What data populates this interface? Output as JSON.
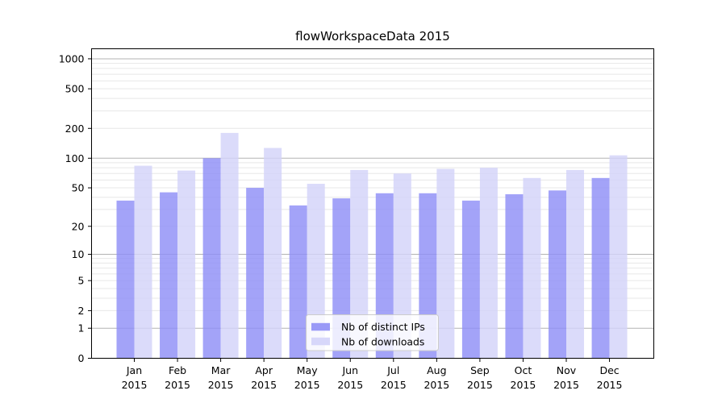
{
  "title": "flowWorkspaceData 2015",
  "chart_data": {
    "type": "bar",
    "title": "flowWorkspaceData 2015",
    "categories": [
      "Jan 2015",
      "Feb 2015",
      "Mar 2015",
      "Apr 2015",
      "May 2015",
      "Jun 2015",
      "Jul 2015",
      "Aug 2015",
      "Sep 2015",
      "Oct 2015",
      "Nov 2015",
      "Dec 2015"
    ],
    "x_tick_labels": [
      [
        "Jan",
        "2015"
      ],
      [
        "Feb",
        "2015"
      ],
      [
        "Mar",
        "2015"
      ],
      [
        "Apr",
        "2015"
      ],
      [
        "May",
        "2015"
      ],
      [
        "Jun",
        "2015"
      ],
      [
        "Jul",
        "2015"
      ],
      [
        "Aug",
        "2015"
      ],
      [
        "Sep",
        "2015"
      ],
      [
        "Oct",
        "2015"
      ],
      [
        "Nov",
        "2015"
      ],
      [
        "Dec",
        "2015"
      ]
    ],
    "series": [
      {
        "name": "Nb of distinct IPs",
        "color": "#8f8ff6",
        "values": [
          37,
          45,
          100,
          50,
          33,
          39,
          44,
          44,
          37,
          43,
          47,
          63
        ]
      },
      {
        "name": "Nb of downloads",
        "color": "#d3d3f9",
        "values": [
          84,
          75,
          180,
          127,
          55,
          76,
          70,
          78,
          80,
          63,
          76,
          107
        ]
      }
    ],
    "xlabel": "",
    "ylabel": "",
    "y_scale": "log10(1+x)",
    "ylim": [
      0,
      1270
    ],
    "y_ticks": [
      0,
      1,
      2,
      5,
      10,
      20,
      50,
      100,
      200,
      500,
      1000
    ],
    "y_tick_labels": [
      "0",
      "1",
      "2",
      "5",
      "10",
      "20",
      "50",
      "100",
      "200",
      "500",
      "1000"
    ],
    "grid": true,
    "gridlines_major": [
      1,
      10,
      100,
      1000
    ],
    "gridlines_minor": [
      2,
      3,
      4,
      5,
      6,
      7,
      8,
      9,
      20,
      30,
      40,
      50,
      60,
      70,
      80,
      90,
      200,
      300,
      400,
      500,
      600,
      700,
      800,
      900
    ],
    "legend_position": "inside-bottom-center",
    "colors": {
      "minor_grid": "#e7e7e7",
      "major_grid": "#b3b3b3",
      "axis": "#000000",
      "legend_border": "#cccccc",
      "legend_bg": "rgba(255,255,255,0.8)"
    }
  }
}
